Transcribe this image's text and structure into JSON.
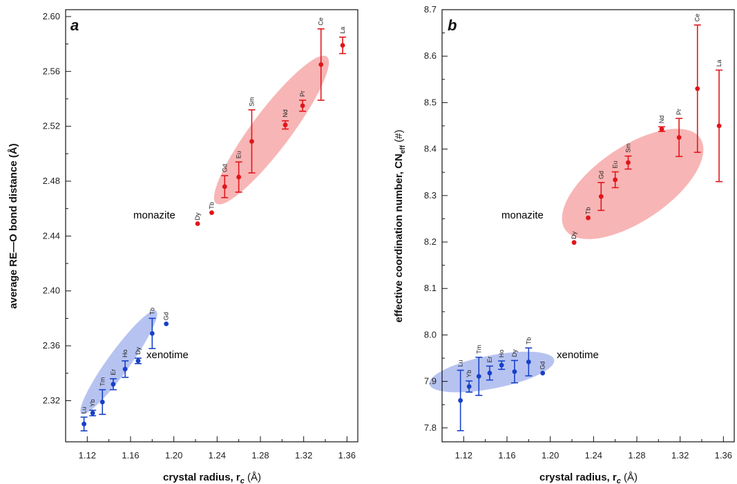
{
  "colors": {
    "monazite": "#e0161b",
    "xenotime": "#1840c8",
    "monazite_fill": "#f7a8a8",
    "xenotime_fill": "#a9b9ef"
  },
  "chart_data": [
    {
      "type": "scatter",
      "panel": "a",
      "xlabel": "crystal radius, r",
      "xlabel_sub": "c",
      "xlabel_unit": " (Å)",
      "ylabel": "average RE—O bond distance (Å)",
      "xlim": [
        1.1,
        1.37
      ],
      "ylim": [
        2.29,
        2.605
      ],
      "xticks": [
        1.12,
        1.16,
        1.2,
        1.24,
        1.28,
        1.32,
        1.36
      ],
      "yticks": [
        2.32,
        2.36,
        2.4,
        2.44,
        2.48,
        2.52,
        2.56,
        2.6
      ],
      "xtick_labels": [
        "1.12",
        "1.16",
        "1.20",
        "1.24",
        "1.28",
        "1.32",
        "1.36"
      ],
      "ytick_labels": [
        "2.32",
        "2.36",
        "2.40",
        "2.44",
        "2.48",
        "2.52",
        "2.56",
        "2.60"
      ],
      "series": [
        {
          "name": "monazite",
          "points": [
            {
              "label": "Dy",
              "x": 1.222,
              "y": 2.449,
              "err": 0
            },
            {
              "label": "Tb",
              "x": 1.235,
              "y": 2.457,
              "err": 0
            },
            {
              "label": "Gd",
              "x": 1.247,
              "y": 2.476,
              "err": 0.008
            },
            {
              "label": "Eu",
              "x": 1.26,
              "y": 2.483,
              "err": 0.011
            },
            {
              "label": "Sm",
              "x": 1.272,
              "y": 2.509,
              "err": 0.023
            },
            {
              "label": "Nd",
              "x": 1.303,
              "y": 2.521,
              "err": 0.003
            },
            {
              "label": "Pr",
              "x": 1.319,
              "y": 2.535,
              "err": 0.004
            },
            {
              "label": "Ce",
              "x": 1.336,
              "y": 2.565,
              "err": 0.026
            },
            {
              "label": "La",
              "x": 1.356,
              "y": 2.579,
              "err": 0.006
            }
          ]
        },
        {
          "name": "xenotime",
          "points": [
            {
              "label": "Lu",
              "x": 1.117,
              "y": 2.303,
              "err": 0.005
            },
            {
              "label": "Yb",
              "x": 1.125,
              "y": 2.311,
              "err": 0.002
            },
            {
              "label": "Tm",
              "x": 1.134,
              "y": 2.319,
              "err": 0.009
            },
            {
              "label": "Er",
              "x": 1.144,
              "y": 2.332,
              "err": 0.004
            },
            {
              "label": "Ho",
              "x": 1.155,
              "y": 2.343,
              "err": 0.006
            },
            {
              "label": "Dy",
              "x": 1.167,
              "y": 2.349,
              "err": 0.002
            },
            {
              "label": "Tb",
              "x": 1.18,
              "y": 2.369,
              "err": 0.011
            },
            {
              "label": "Gd",
              "x": 1.193,
              "y": 2.376,
              "err": 0
            }
          ]
        }
      ]
    },
    {
      "type": "scatter",
      "panel": "b",
      "xlabel": "crystal radius, r",
      "xlabel_sub": "c",
      "xlabel_unit": " (Å)",
      "ylabel": "effective coordination number, CN",
      "ylabel_sub": "eff",
      "ylabel_unit": " (#)",
      "xlim": [
        1.1,
        1.37
      ],
      "ylim": [
        7.77,
        8.7
      ],
      "xticks": [
        1.12,
        1.16,
        1.2,
        1.24,
        1.28,
        1.32,
        1.36
      ],
      "yticks": [
        7.8,
        7.9,
        8.0,
        8.1,
        8.2,
        8.3,
        8.4,
        8.5,
        8.6,
        8.7
      ],
      "xtick_labels": [
        "1.12",
        "1.16",
        "1.20",
        "1.24",
        "1.28",
        "1.32",
        "1.36"
      ],
      "ytick_labels": [
        "7.8",
        "7.9",
        "8.0",
        "8.1",
        "8.2",
        "8.3",
        "8.4",
        "8.5",
        "8.6",
        "8.7"
      ],
      "series": [
        {
          "name": "monazite",
          "points": [
            {
              "label": "Dy",
              "x": 1.222,
              "y": 8.199,
              "err": 0
            },
            {
              "label": "Tb",
              "x": 1.235,
              "y": 8.252,
              "err": 0
            },
            {
              "label": "Gd",
              "x": 1.247,
              "y": 8.298,
              "err": 0.03
            },
            {
              "label": "Eu",
              "x": 1.26,
              "y": 8.334,
              "err": 0.017
            },
            {
              "label": "Sm",
              "x": 1.272,
              "y": 8.371,
              "err": 0.014
            },
            {
              "label": "Nd",
              "x": 1.303,
              "y": 8.443,
              "err": 0.005
            },
            {
              "label": "Pr",
              "x": 1.319,
              "y": 8.425,
              "err": 0.041
            },
            {
              "label": "Ce",
              "x": 1.336,
              "y": 8.53,
              "err": 0.137
            },
            {
              "label": "La",
              "x": 1.356,
              "y": 8.45,
              "err": 0.12
            }
          ]
        },
        {
          "name": "xenotime",
          "points": [
            {
              "label": "Lu",
              "x": 1.117,
              "y": 7.859,
              "err": 0.065
            },
            {
              "label": "Yb",
              "x": 1.125,
              "y": 7.889,
              "err": 0.012
            },
            {
              "label": "Tm",
              "x": 1.134,
              "y": 7.911,
              "err": 0.041
            },
            {
              "label": "Er",
              "x": 1.144,
              "y": 7.918,
              "err": 0.015
            },
            {
              "label": "Ho",
              "x": 1.155,
              "y": 7.935,
              "err": 0.009
            },
            {
              "label": "Dy",
              "x": 1.167,
              "y": 7.921,
              "err": 0.024
            },
            {
              "label": "Tb",
              "x": 1.18,
              "y": 7.942,
              "err": 0.03
            },
            {
              "label": "Gd",
              "x": 1.193,
              "y": 7.918,
              "err": 0
            }
          ]
        }
      ]
    }
  ]
}
